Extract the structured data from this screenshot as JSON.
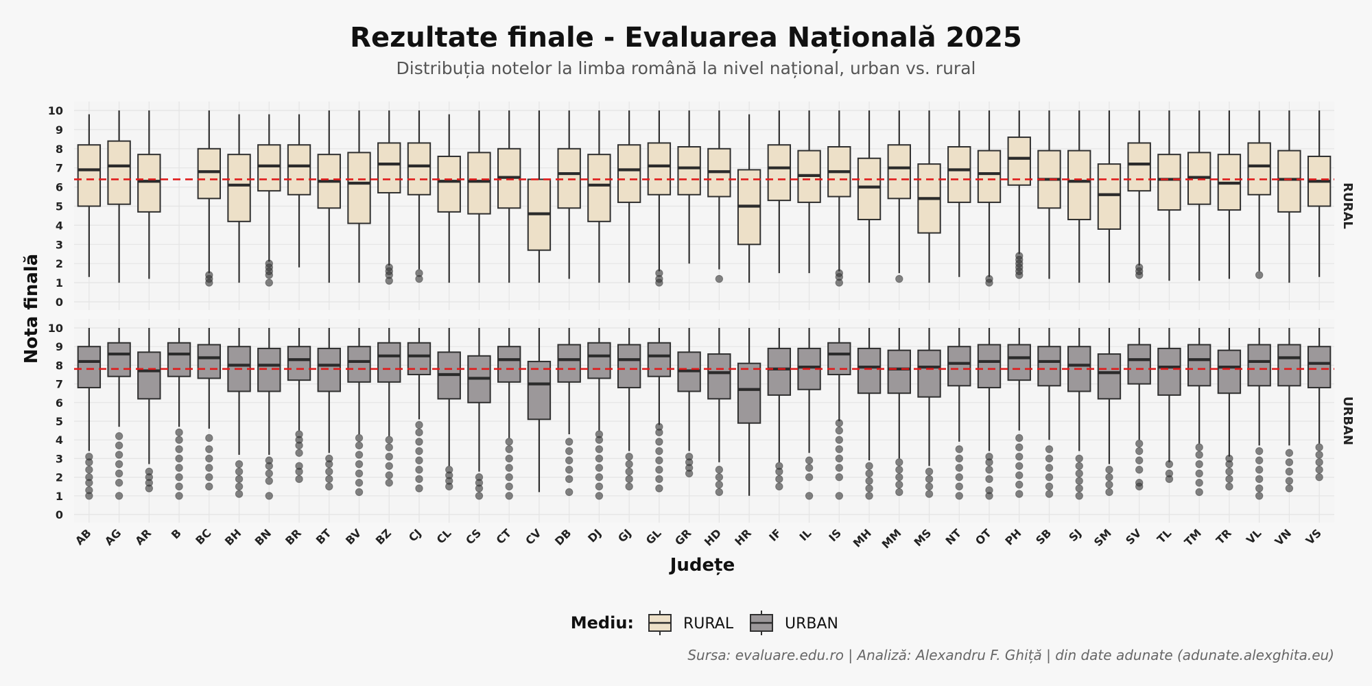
{
  "chart_data": {
    "type": "boxplot",
    "title": "Rezultate finale - Evaluarea Națională 2025",
    "subtitle": "Distribuția notelor la limba română la nivel național, urban vs. rural",
    "xlabel": "Județe",
    "ylabel": "Nota finală",
    "ylim": [
      0,
      10
    ],
    "yticks": [
      0,
      1,
      2,
      3,
      4,
      5,
      6,
      7,
      8,
      9,
      10
    ],
    "grid": true,
    "legend": {
      "title": "Mediu:",
      "position": "bottom",
      "entries": [
        {
          "label": "RURAL",
          "color": "#ede0c8"
        },
        {
          "label": "URBAN",
          "color": "#9c989a"
        }
      ]
    },
    "caption": "Sursa: evaluare.edu.ro | Analiză: Alexandru F. Ghiță | din date adunate (adunate.alexghita.eu)",
    "mean_line_color": "#e01b1b",
    "categories": [
      "AB",
      "AG",
      "AR",
      "B",
      "BC",
      "BH",
      "BN",
      "BR",
      "BT",
      "BV",
      "BZ",
      "CJ",
      "CL",
      "CS",
      "CT",
      "CV",
      "DB",
      "DJ",
      "GJ",
      "GL",
      "GR",
      "HD",
      "HR",
      "IF",
      "IL",
      "IS",
      "MH",
      "MM",
      "MS",
      "NT",
      "OT",
      "PH",
      "SB",
      "SJ",
      "SM",
      "SV",
      "TL",
      "TM",
      "TR",
      "VL",
      "VN",
      "VS"
    ],
    "panels": [
      {
        "name": "RURAL",
        "color": "#ede0c8",
        "mean": 6.4,
        "boxes": [
          [
            1.3,
            5.0,
            6.9,
            8.2,
            9.8,
            []
          ],
          [
            1.0,
            5.1,
            7.1,
            8.4,
            10.0,
            []
          ],
          [
            1.2,
            4.7,
            6.3,
            7.7,
            10.0,
            []
          ],
          null,
          [
            1.5,
            5.4,
            6.8,
            8.0,
            10.0,
            [
              1.0,
              1.2,
              1.4
            ]
          ],
          [
            1.0,
            4.2,
            6.1,
            7.7,
            9.8,
            []
          ],
          [
            2.1,
            5.8,
            7.1,
            8.2,
            9.8,
            [
              1.0,
              1.4,
              1.6,
              1.8,
              2.0
            ]
          ],
          [
            1.8,
            5.6,
            7.1,
            8.2,
            9.8,
            []
          ],
          [
            1.0,
            4.9,
            6.3,
            7.7,
            10.0,
            []
          ],
          [
            1.0,
            4.1,
            6.2,
            7.8,
            10.0,
            []
          ],
          [
            1.9,
            5.7,
            7.2,
            8.3,
            10.0,
            [
              1.1,
              1.4,
              1.6,
              1.8
            ]
          ],
          [
            1.7,
            5.6,
            7.1,
            8.3,
            10.0,
            [
              1.2,
              1.5
            ]
          ],
          [
            1.0,
            4.7,
            6.3,
            7.6,
            9.8,
            []
          ],
          [
            1.0,
            4.6,
            6.3,
            7.8,
            10.0,
            []
          ],
          [
            1.0,
            4.9,
            6.5,
            8.0,
            10.0,
            []
          ],
          [
            1.0,
            2.7,
            4.6,
            6.4,
            10.0,
            []
          ],
          [
            1.2,
            4.9,
            6.7,
            8.0,
            10.0,
            []
          ],
          [
            1.0,
            4.2,
            6.1,
            7.7,
            10.0,
            []
          ],
          [
            1.0,
            5.2,
            6.9,
            8.2,
            10.0,
            []
          ],
          [
            1.6,
            5.6,
            7.1,
            8.3,
            10.0,
            [
              1.0,
              1.2,
              1.5
            ]
          ],
          [
            2.0,
            5.6,
            7.0,
            8.1,
            10.0,
            []
          ],
          [
            1.7,
            5.5,
            6.8,
            8.0,
            10.0,
            [
              1.2
            ]
          ],
          [
            1.0,
            3.0,
            5.0,
            6.9,
            9.8,
            []
          ],
          [
            1.5,
            5.3,
            7.0,
            8.2,
            10.0,
            []
          ],
          [
            1.5,
            5.2,
            6.6,
            7.9,
            10.0,
            []
          ],
          [
            1.6,
            5.5,
            6.8,
            8.1,
            10.0,
            [
              1.0,
              1.3,
              1.5
            ]
          ],
          [
            1.0,
            4.3,
            6.0,
            7.5,
            10.0,
            []
          ],
          [
            1.5,
            5.4,
            7.0,
            8.2,
            10.0,
            [
              1.2
            ]
          ],
          [
            1.0,
            3.6,
            5.4,
            7.2,
            10.0,
            []
          ],
          [
            1.3,
            5.2,
            6.9,
            8.1,
            10.0,
            []
          ],
          [
            1.3,
            5.2,
            6.7,
            7.9,
            10.0,
            [
              1.0,
              1.2
            ]
          ],
          [
            2.5,
            6.1,
            7.5,
            8.6,
            10.0,
            [
              1.4,
              1.6,
              1.8,
              2.0,
              2.2,
              2.4
            ]
          ],
          [
            1.2,
            4.9,
            6.4,
            7.9,
            10.0,
            []
          ],
          [
            1.0,
            4.3,
            6.3,
            7.9,
            10.0,
            []
          ],
          [
            1.0,
            3.8,
            5.6,
            7.2,
            10.0,
            []
          ],
          [
            1.9,
            5.8,
            7.2,
            8.3,
            10.0,
            [
              1.4,
              1.6,
              1.8
            ]
          ],
          [
            1.1,
            4.8,
            6.4,
            7.7,
            10.0,
            []
          ],
          [
            1.1,
            5.1,
            6.5,
            7.8,
            10.0,
            []
          ],
          [
            1.2,
            4.8,
            6.2,
            7.7,
            10.0,
            []
          ],
          [
            1.6,
            5.6,
            7.1,
            8.3,
            10.0,
            [
              1.4
            ]
          ],
          [
            1.0,
            4.7,
            6.4,
            7.9,
            10.0,
            []
          ],
          [
            1.3,
            5.0,
            6.3,
            7.6,
            10.0,
            []
          ]
        ]
      },
      {
        "name": "URBAN",
        "color": "#9c989a",
        "mean": 7.8,
        "boxes": [
          [
            3.4,
            6.8,
            8.2,
            9.0,
            10.0,
            [
              1.0,
              1.3,
              1.7,
              2.0,
              2.4,
              2.8,
              3.1
            ]
          ],
          [
            4.7,
            7.4,
            8.6,
            9.2,
            10.0,
            [
              1.0,
              1.7,
              2.2,
              2.7,
              3.2,
              3.7,
              4.2
            ]
          ],
          [
            2.7,
            6.2,
            7.7,
            8.7,
            10.0,
            [
              1.4,
              1.7,
              2.0,
              2.3
            ]
          ],
          [
            4.7,
            7.4,
            8.6,
            9.2,
            10.0,
            [
              1.0,
              1.5,
              2.0,
              2.5,
              3.0,
              3.5,
              4.0,
              4.4
            ]
          ],
          [
            4.6,
            7.3,
            8.4,
            9.1,
            10.0,
            [
              1.5,
              2.0,
              2.5,
              3.0,
              3.5,
              4.1
            ]
          ],
          [
            3.2,
            6.6,
            8.0,
            9.0,
            10.0,
            [
              1.1,
              1.5,
              1.9,
              2.3,
              2.7
            ]
          ],
          [
            3.2,
            6.6,
            8.0,
            8.9,
            10.0,
            [
              1.0,
              1.8,
              2.2,
              2.6,
              2.9
            ]
          ],
          [
            4.5,
            7.2,
            8.3,
            9.0,
            10.0,
            [
              1.9,
              2.3,
              2.6,
              3.3,
              3.7,
              4.0,
              4.3
            ]
          ],
          [
            3.3,
            6.6,
            8.0,
            8.9,
            10.0,
            [
              1.5,
              1.9,
              2.3,
              2.7,
              3.0
            ]
          ],
          [
            4.3,
            7.1,
            8.2,
            9.0,
            10.0,
            [
              1.2,
              1.7,
              2.2,
              2.7,
              3.2,
              3.7,
              4.1
            ]
          ],
          [
            4.2,
            7.1,
            8.5,
            9.2,
            10.0,
            [
              1.7,
              2.1,
              2.6,
              3.1,
              3.6,
              4.0
            ]
          ],
          [
            5.1,
            7.5,
            8.5,
            9.2,
            10.0,
            [
              1.4,
              1.9,
              2.4,
              2.9,
              3.4,
              3.9,
              4.4,
              4.8
            ]
          ],
          [
            2.6,
            6.2,
            7.5,
            8.7,
            10.0,
            [
              1.5,
              1.8,
              2.1,
              2.4
            ]
          ],
          [
            2.3,
            6.0,
            7.3,
            8.5,
            10.0,
            [
              1.0,
              1.4,
              1.7,
              2.0
            ]
          ],
          [
            4.1,
            7.1,
            8.3,
            9.0,
            10.0,
            [
              1.0,
              1.5,
              2.0,
              2.5,
              3.0,
              3.5,
              3.9
            ]
          ],
          [
            1.2,
            5.1,
            7.0,
            8.2,
            10.0,
            []
          ],
          [
            4.3,
            7.1,
            8.3,
            9.1,
            10.0,
            [
              1.2,
              1.9,
              2.4,
              2.9,
              3.4,
              3.9
            ]
          ],
          [
            4.5,
            7.3,
            8.5,
            9.2,
            10.0,
            [
              1.0,
              1.5,
              2.0,
              2.5,
              3.0,
              3.5,
              4.0,
              4.3
            ]
          ],
          [
            3.4,
            6.8,
            8.3,
            9.1,
            10.0,
            [
              1.5,
              1.9,
              2.3,
              2.7,
              3.1
            ]
          ],
          [
            4.8,
            7.4,
            8.5,
            9.2,
            10.0,
            [
              1.4,
              1.9,
              2.4,
              2.9,
              3.4,
              3.9,
              4.4,
              4.7
            ]
          ],
          [
            3.4,
            6.6,
            7.7,
            8.7,
            10.0,
            [
              2.2,
              2.5,
              2.8,
              3.1
            ]
          ],
          [
            2.8,
            6.2,
            7.6,
            8.6,
            10.0,
            [
              1.2,
              1.6,
              2.0,
              2.4
            ]
          ],
          [
            1.0,
            4.9,
            6.7,
            8.1,
            10.0,
            []
          ],
          [
            2.8,
            6.4,
            7.8,
            8.9,
            10.0,
            [
              1.5,
              1.9,
              2.3,
              2.6
            ]
          ],
          [
            3.3,
            6.7,
            7.9,
            8.9,
            10.0,
            [
              1.0,
              2.0,
              2.5,
              2.9
            ]
          ],
          [
            5.0,
            7.5,
            8.6,
            9.2,
            10.0,
            [
              1.0,
              2.0,
              2.5,
              3.0,
              3.5,
              4.0,
              4.5,
              4.9
            ]
          ],
          [
            2.9,
            6.5,
            7.9,
            8.9,
            10.0,
            [
              1.0,
              1.4,
              1.8,
              2.2,
              2.6
            ]
          ],
          [
            3.0,
            6.5,
            7.8,
            8.8,
            10.0,
            [
              1.2,
              1.6,
              2.0,
              2.4,
              2.8
            ]
          ],
          [
            2.6,
            6.3,
            7.9,
            8.8,
            10.0,
            [
              1.1,
              1.5,
              1.9,
              2.3
            ]
          ],
          [
            3.9,
            6.9,
            8.1,
            9.0,
            10.0,
            [
              1.0,
              1.5,
              2.0,
              2.5,
              3.0,
              3.5
            ]
          ],
          [
            3.4,
            6.8,
            8.2,
            9.1,
            10.0,
            [
              1.0,
              1.3,
              1.9,
              2.4,
              2.8,
              3.1
            ]
          ],
          [
            4.5,
            7.2,
            8.4,
            9.1,
            10.0,
            [
              1.1,
              1.6,
              2.1,
              2.6,
              3.1,
              3.6,
              4.1
            ]
          ],
          [
            4.0,
            6.9,
            8.2,
            9.0,
            10.0,
            [
              1.1,
              1.5,
              2.0,
              2.5,
              3.0,
              3.5
            ]
          ],
          [
            3.4,
            6.6,
            8.0,
            9.0,
            10.0,
            [
              1.0,
              1.4,
              1.8,
              2.2,
              2.6,
              3.0
            ]
          ],
          [
            2.7,
            6.2,
            7.6,
            8.6,
            10.0,
            [
              1.2,
              1.6,
              2.0,
              2.4
            ]
          ],
          [
            4.0,
            7.0,
            8.3,
            9.1,
            10.0,
            [
              1.5,
              1.7,
              2.4,
              2.9,
              3.4,
              3.8
            ]
          ],
          [
            2.8,
            6.4,
            7.9,
            8.9,
            10.0,
            [
              1.9,
              2.2,
              2.7
            ]
          ],
          [
            3.8,
            6.9,
            8.3,
            9.1,
            10.0,
            [
              1.2,
              1.7,
              2.2,
              2.7,
              3.2,
              3.6
            ]
          ],
          [
            3.1,
            6.5,
            7.9,
            8.8,
            10.0,
            [
              1.5,
              1.9,
              2.3,
              2.7,
              3.0
            ]
          ],
          [
            3.7,
            6.9,
            8.2,
            9.1,
            10.0,
            [
              1.0,
              1.4,
              1.9,
              2.4,
              2.9,
              3.4
            ]
          ],
          [
            3.7,
            6.9,
            8.4,
            9.1,
            10.0,
            [
              1.4,
              1.8,
              2.3,
              2.8,
              3.3
            ]
          ],
          [
            3.8,
            6.8,
            8.1,
            9.0,
            10.0,
            [
              2.0,
              2.4,
              2.8,
              3.2,
              3.6
            ]
          ]
        ]
      }
    ]
  }
}
